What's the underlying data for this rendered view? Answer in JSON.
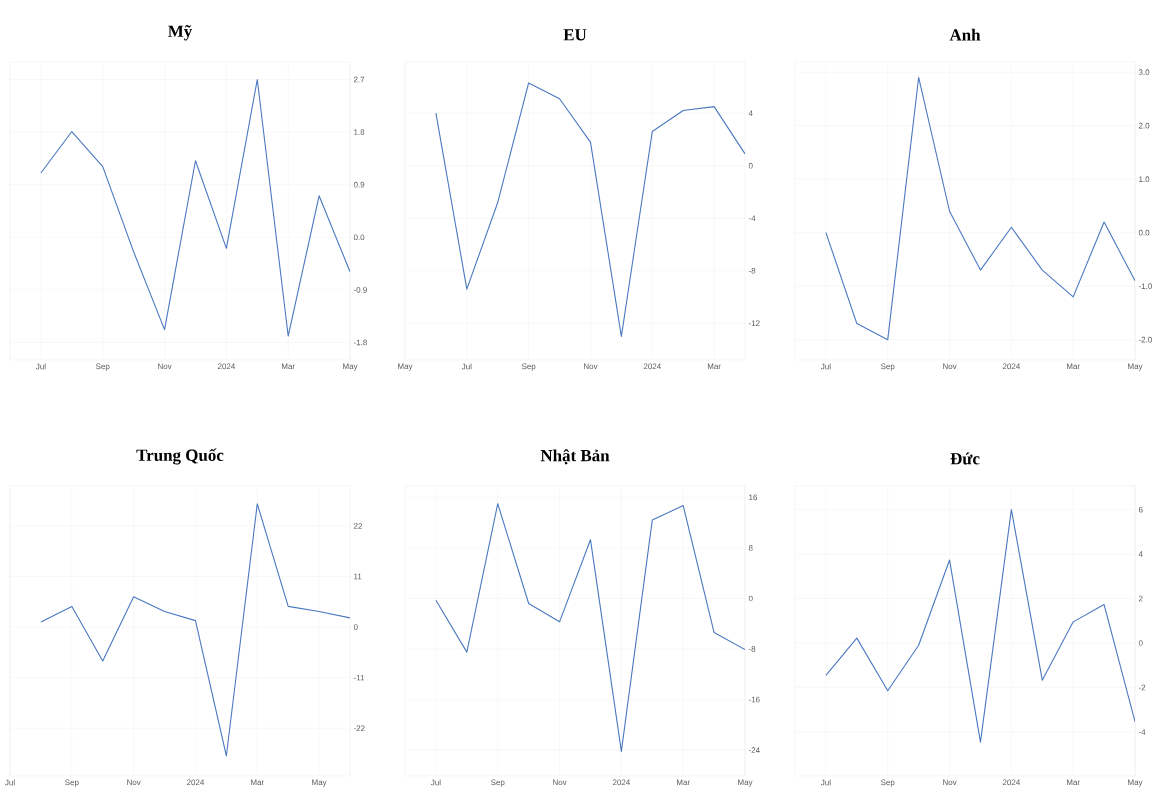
{
  "chart_data": [
    {
      "type": "line",
      "title": "Mỹ",
      "color": "#4a78c0",
      "grid": true,
      "x": [
        "2023-07",
        "2023-08",
        "2023-09",
        "2023-10",
        "2023-11",
        "2023-12",
        "2024-01",
        "2024-02",
        "2024-03",
        "2024-04",
        "2024-05"
      ],
      "values": [
        1.1,
        1.81,
        1.21,
        -0.25,
        -1.58,
        1.31,
        -0.19,
        2.7,
        -1.69,
        0.71,
        -0.59
      ],
      "xlim": [
        "2023-06",
        "2024-05"
      ],
      "xticks": [
        {
          "value": "2023-07",
          "label": "Jul"
        },
        {
          "value": "2023-09",
          "label": "Sep"
        },
        {
          "value": "2023-11",
          "label": "Nov"
        },
        {
          "value": "2024-01",
          "label": "2024"
        },
        {
          "value": "2024-03",
          "label": "Mar"
        },
        {
          "value": "2024-05",
          "label": "May"
        }
      ],
      "ylim": [
        -2.1,
        3.0
      ],
      "yticks": [
        2.7,
        1.8,
        0.9,
        {
          "value": 0,
          "label": "0.0"
        },
        -0.9,
        -1.8
      ]
    },
    {
      "type": "line",
      "title": "EU",
      "color": "#4a78c0",
      "grid": true,
      "x": [
        "2023-06",
        "2023-07",
        "2023-08",
        "2023-09",
        "2023-10",
        "2023-11",
        "2023-12",
        "2024-01",
        "2024-02",
        "2024-03",
        "2024-04"
      ],
      "values": [
        4.0,
        -9.4,
        -2.8,
        6.3,
        5.1,
        1.8,
        -13.0,
        2.6,
        4.2,
        4.5,
        0.9
      ],
      "xlim": [
        "2023-05",
        "2024-04"
      ],
      "xticks": [
        {
          "value": "2023-05",
          "label": "May"
        },
        {
          "value": "2023-07",
          "label": "Jul"
        },
        {
          "value": "2023-09",
          "label": "Sep"
        },
        {
          "value": "2023-11",
          "label": "Nov"
        },
        {
          "value": "2024-01",
          "label": "2024"
        },
        {
          "value": "2024-03",
          "label": "Mar"
        }
      ],
      "ylim": [
        -14.8,
        7.9
      ],
      "yticks": [
        4,
        0,
        -4,
        -8,
        -12
      ]
    },
    {
      "type": "line",
      "title": "Anh",
      "color": "#4a78c0",
      "grid": true,
      "x": [
        "2023-07",
        "2023-08",
        "2023-09",
        "2023-10",
        "2023-11",
        "2023-12",
        "2024-01",
        "2024-02",
        "2024-03",
        "2024-04",
        "2024-05"
      ],
      "values": [
        0.0,
        -1.7,
        -2.0,
        2.9,
        0.4,
        -0.7,
        0.1,
        -0.7,
        -1.2,
        0.2,
        -0.9
      ],
      "xlim": [
        "2023-06",
        "2024-05"
      ],
      "xticks": [
        {
          "value": "2023-07",
          "label": "Jul"
        },
        {
          "value": "2023-09",
          "label": "Sep"
        },
        {
          "value": "2023-11",
          "label": "Nov"
        },
        {
          "value": "2024-01",
          "label": "2024"
        },
        {
          "value": "2024-03",
          "label": "Mar"
        },
        {
          "value": "2024-05",
          "label": "May"
        }
      ],
      "ylim": [
        -2.38,
        3.19
      ],
      "yticks": [
        {
          "value": 3,
          "label": "3.0"
        },
        {
          "value": 2,
          "label": "2.0"
        },
        {
          "value": 1,
          "label": "1.0"
        },
        {
          "value": 0,
          "label": "0.0"
        },
        {
          "value": -1,
          "label": "-1.0"
        },
        {
          "value": -2,
          "label": "-2.0"
        }
      ]
    },
    {
      "type": "line",
      "title": "Trung Quốc",
      "color": "#4a78c0",
      "grid": true,
      "x": [
        "2023-08",
        "2023-09",
        "2023-10",
        "2023-11",
        "2023-12",
        "2024-01",
        "2024-02",
        "2024-03",
        "2024-04",
        "2024-05",
        "2024-06"
      ],
      "values": [
        1.1,
        4.5,
        -7.4,
        6.6,
        3.4,
        1.4,
        -28.0,
        26.8,
        4.5,
        3.4,
        2.0
      ],
      "xlim": [
        "2023-07",
        "2024-06"
      ],
      "xticks": [
        {
          "value": "2023-07",
          "label": "Jul"
        },
        {
          "value": "2023-09",
          "label": "Sep"
        },
        {
          "value": "2023-11",
          "label": "Nov"
        },
        {
          "value": "2024-01",
          "label": "2024"
        },
        {
          "value": "2024-03",
          "label": "Mar"
        },
        {
          "value": "2024-05",
          "label": "May"
        }
      ],
      "ylim": [
        -32.4,
        30.7
      ],
      "yticks": [
        22,
        11,
        0,
        -11,
        -22
      ]
    },
    {
      "type": "line",
      "title": "Nhật Bản",
      "color": "#4a78c0",
      "grid": true,
      "x": [
        "2023-07",
        "2023-08",
        "2023-09",
        "2023-10",
        "2023-11",
        "2023-12",
        "2024-01",
        "2024-02",
        "2024-03",
        "2024-04",
        "2024-05"
      ],
      "values": [
        -0.3,
        -8.5,
        15.0,
        -0.8,
        -3.7,
        9.3,
        -24.2,
        12.4,
        14.7,
        -5.4,
        -8.1
      ],
      "xlim": [
        "2023-06",
        "2024-05"
      ],
      "xticks": [
        {
          "value": "2023-07",
          "label": "Jul"
        },
        {
          "value": "2023-09",
          "label": "Sep"
        },
        {
          "value": "2023-11",
          "label": "Nov"
        },
        {
          "value": "2024-01",
          "label": "2024"
        },
        {
          "value": "2024-03",
          "label": "Mar"
        },
        {
          "value": "2024-05",
          "label": "May"
        }
      ],
      "ylim": [
        -28.1,
        17.8
      ],
      "yticks": [
        16,
        8,
        0,
        -8,
        -16,
        -24
      ]
    },
    {
      "type": "line",
      "title": "Đức",
      "color": "#4a78c0",
      "grid": true,
      "x": [
        "2023-07",
        "2023-08",
        "2023-09",
        "2023-10",
        "2023-11",
        "2023-12",
        "2024-01",
        "2024-02",
        "2024-03",
        "2024-04",
        "2024-05"
      ],
      "values": [
        -1.46,
        0.22,
        -2.15,
        -0.1,
        3.73,
        -4.46,
        6.0,
        -1.67,
        0.95,
        1.73,
        -3.54
      ],
      "xlim": [
        "2023-06",
        "2024-05"
      ],
      "xticks": [
        {
          "value": "2023-07",
          "label": "Jul"
        },
        {
          "value": "2023-09",
          "label": "Sep"
        },
        {
          "value": "2023-11",
          "label": "Nov"
        },
        {
          "value": "2024-01",
          "label": "2024"
        },
        {
          "value": "2024-03",
          "label": "Mar"
        },
        {
          "value": "2024-05",
          "label": "May"
        }
      ],
      "ylim": [
        -5.98,
        7.06
      ],
      "yticks": [
        6,
        4,
        2,
        0,
        -2,
        -4
      ]
    }
  ]
}
